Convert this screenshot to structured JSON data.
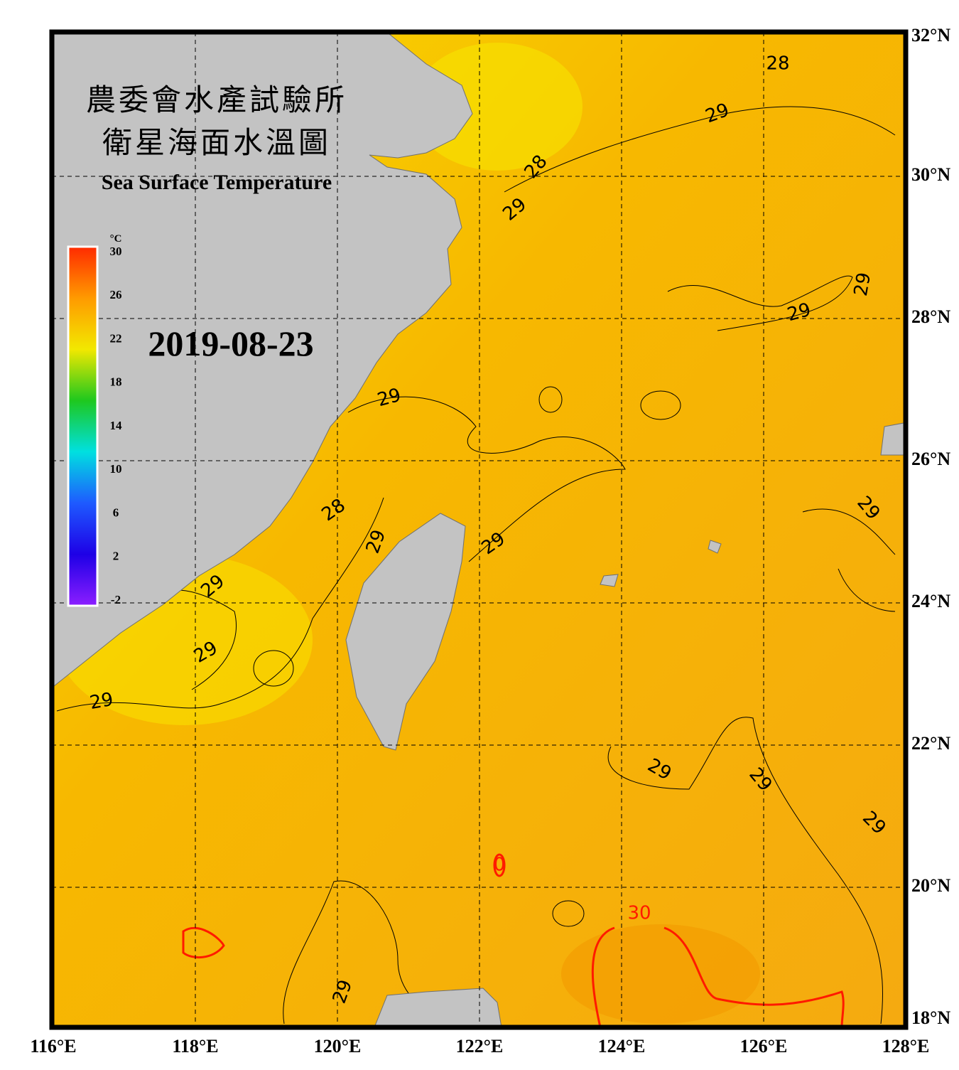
{
  "header": {
    "title_zh_1": "農委會水產試驗所",
    "title_zh_2": "衛星海面水溫圖",
    "title_en": "Sea Surface Temperature"
  },
  "date": "2019-08-23",
  "colorbar": {
    "unit": "°C",
    "ticks": [
      30,
      26,
      22,
      18,
      14,
      10,
      6,
      2,
      -2
    ],
    "colors": [
      "#ff2a00",
      "#ff9a00",
      "#f2e800",
      "#1ec81e",
      "#00e0e0",
      "#1e5aff",
      "#1e00e6",
      "#8c1eff"
    ]
  },
  "longitude_ticks": [
    {
      "value": 116,
      "label": "116°E"
    },
    {
      "value": 118,
      "label": "118°E"
    },
    {
      "value": 120,
      "label": "120°E"
    },
    {
      "value": 122,
      "label": "122°E"
    },
    {
      "value": 124,
      "label": "124°E"
    },
    {
      "value": 126,
      "label": "126°E"
    },
    {
      "value": 128,
      "label": "128°E"
    }
  ],
  "latitude_ticks": [
    {
      "value": 32,
      "label": "32°N"
    },
    {
      "value": 30,
      "label": "30°N"
    },
    {
      "value": 28,
      "label": "28°N"
    },
    {
      "value": 26,
      "label": "26°N"
    },
    {
      "value": 24,
      "label": "24°N"
    },
    {
      "value": 22,
      "label": "22°N"
    },
    {
      "value": 20,
      "label": "20°N"
    },
    {
      "value": 18,
      "label": "18°N"
    }
  ],
  "contour_labels": [
    28,
    29,
    28,
    29,
    29,
    29,
    29,
    28,
    29,
    29,
    29,
    29,
    29,
    29,
    29,
    29,
    29,
    29,
    30,
    0
  ]
}
